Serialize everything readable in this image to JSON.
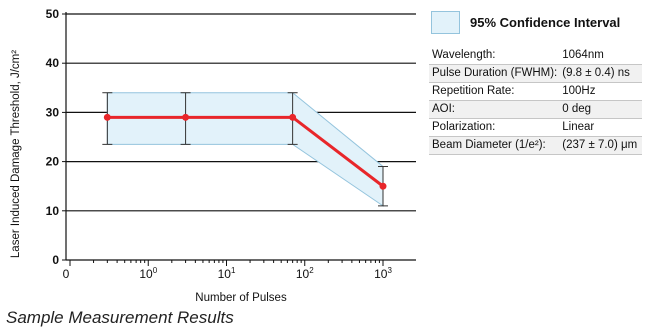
{
  "chart_data": {
    "type": "line",
    "title": "",
    "xlabel": "Number of Pulses",
    "ylabel": "Laser Induced Damage Threshold, J/cm²",
    "xscale": "log",
    "xticks": [
      {
        "value": 0,
        "base": "0",
        "exp": ""
      },
      {
        "value": 1,
        "base": "10",
        "exp": "0"
      },
      {
        "value": 10,
        "base": "10",
        "exp": "1"
      },
      {
        "value": 100,
        "base": "10",
        "exp": "2"
      },
      {
        "value": 1000,
        "base": "10",
        "exp": "3"
      }
    ],
    "yticks": [
      "0",
      "10",
      "20",
      "30",
      "40",
      "50"
    ],
    "ylim": [
      0,
      50
    ],
    "grid": "horizontal",
    "series": [
      {
        "color": "#e8262a",
        "points": [
          {
            "x": 0.3,
            "y": 29,
            "yerr_low": 23.5,
            "yerr_high": 34
          },
          {
            "x": 3,
            "y": 29,
            "yerr_low": 23.5,
            "yerr_high": 34
          },
          {
            "x": 70,
            "y": 29,
            "yerr_low": 23.5,
            "yerr_high": 34
          },
          {
            "x": 1000,
            "y": 15,
            "yerr_low": 11,
            "yerr_high": 19
          }
        ]
      }
    ],
    "band": {
      "label": "95% Confidence Interval",
      "fill": "#e2f2fa",
      "stroke": "#94c4dd"
    },
    "legend_position": "top-right"
  },
  "specs": [
    {
      "key": "Wavelength:",
      "value": "1064nm"
    },
    {
      "key": "Pulse Duration (FWHM):",
      "value": "(9.8 ± 0.4) ns"
    },
    {
      "key": "Repetition Rate:",
      "value": "100Hz"
    },
    {
      "key": "AOI:",
      "value": "0 deg"
    },
    {
      "key": "Polarization:",
      "value": "Linear"
    },
    {
      "key": "Beam Diameter (1/e²):",
      "value": "(237 ± 7.0) μm"
    }
  ],
  "caption": "Sample Measurement Results"
}
